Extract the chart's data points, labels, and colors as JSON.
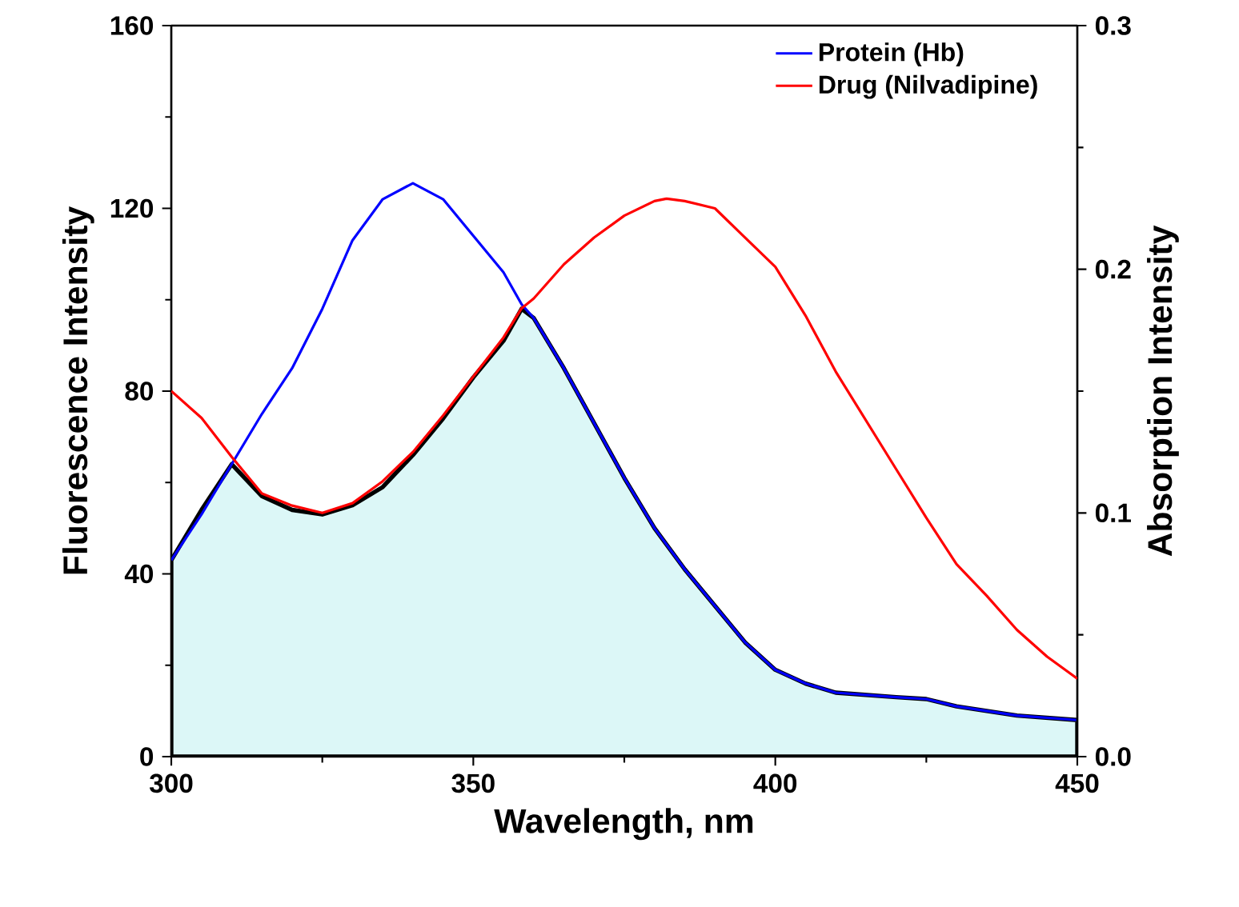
{
  "chart_data": {
    "type": "line",
    "xlabel": "Wavelength, nm",
    "ylabel": "Fluorescence Intensity",
    "y2label": "Absorption Intensity",
    "xlim": [
      300,
      450
    ],
    "xticks": [
      300,
      350,
      400,
      450
    ],
    "ylim": [
      0,
      160
    ],
    "yticks": [
      0,
      40,
      80,
      120,
      160
    ],
    "y2lim": [
      0,
      0.3
    ],
    "y2ticks": [
      {
        "value": 0,
        "label": "0.0"
      },
      0.1,
      0.2,
      0.3
    ],
    "legend": "top right",
    "series": [
      {
        "name": "Protein (Hb)",
        "color": "#0000ff",
        "x": [
          300,
          305,
          310,
          315,
          320,
          325,
          330,
          335,
          340,
          345,
          350,
          355,
          358,
          360,
          365,
          370,
          375,
          380,
          385,
          390,
          395,
          400,
          405,
          410,
          420,
          425,
          430,
          440,
          450
        ],
        "values": [
          43,
          53,
          64,
          75,
          85,
          98,
          113,
          122,
          125.5,
          122,
          114,
          106,
          99,
          96,
          85,
          73,
          61,
          50,
          41,
          33,
          25,
          19,
          16,
          14,
          13,
          12.6,
          11,
          9,
          8
        ]
      },
      {
        "name": "Drug (Nilvadipine)",
        "color": "#ff0000",
        "axis": "y2",
        "x": [
          300,
          305,
          310,
          315,
          320,
          325,
          330,
          335,
          340,
          345,
          350,
          355,
          358,
          360,
          365,
          370,
          375,
          380,
          382,
          385,
          390,
          395,
          400,
          405,
          410,
          415,
          420,
          425,
          430,
          435,
          440,
          445,
          450
        ],
        "values": [
          0.15,
          0.139,
          0.123,
          0.108,
          0.103,
          0.1,
          0.104,
          0.113,
          0.125,
          0.14,
          0.156,
          0.172,
          0.184,
          0.188,
          0.202,
          0.213,
          0.222,
          0.228,
          0.229,
          0.228,
          0.225,
          0.213,
          0.201,
          0.181,
          0.158,
          0.138,
          0.118,
          0.098,
          0.079,
          0.066,
          0.052,
          0.041,
          0.032
        ]
      },
      {
        "type": "area",
        "color": "#dcf7f7",
        "x": [
          300,
          305,
          310,
          315,
          320,
          325,
          330,
          335,
          340,
          345,
          350,
          355,
          358,
          360,
          365,
          370,
          375,
          380,
          385,
          390,
          395,
          400,
          405,
          410,
          420,
          425,
          430,
          440,
          450
        ],
        "values": [
          43,
          54,
          64,
          57,
          54,
          53,
          55,
          59,
          66,
          74,
          83,
          91,
          98,
          96,
          85,
          73,
          61,
          50,
          41,
          33,
          25,
          19,
          16,
          14,
          13,
          12.6,
          11,
          9,
          8
        ]
      }
    ]
  }
}
